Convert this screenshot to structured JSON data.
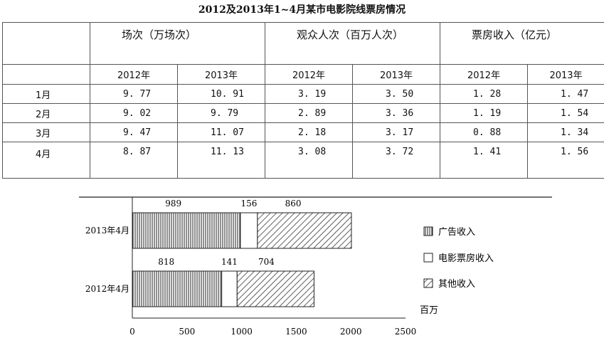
{
  "table": {
    "title": "2012及2013年1~4月某市电影院线票房情况",
    "groups": [
      "场次（万场次）",
      "观众人次（百万人次）",
      "票房收入（亿元）"
    ],
    "years": [
      "2012年",
      "2013年",
      "2012年",
      "2013年",
      "2012年",
      "2013年"
    ],
    "rows": [
      {
        "month": "1月",
        "values": [
          "9. 77",
          "10. 91",
          "3. 19",
          "3. 50",
          "1. 28",
          "1. 47"
        ]
      },
      {
        "month": "2月",
        "values": [
          "9. 02",
          "9. 79",
          "2. 89",
          "3. 36",
          "1. 19",
          "1. 54"
        ]
      },
      {
        "month": "3月",
        "values": [
          "9. 47",
          "11. 07",
          "2. 18",
          "3. 17",
          "0. 88",
          "1. 34"
        ]
      },
      {
        "month": "4月",
        "values": [
          "8. 87",
          "11. 13",
          "3. 08",
          "3. 72",
          "1. 41",
          "1. 56"
        ]
      }
    ]
  },
  "chart_data": {
    "type": "bar",
    "orientation": "horizontal",
    "stacked": true,
    "categories": [
      "2013年4月",
      "2012年4月"
    ],
    "series": [
      {
        "name": "广告收入",
        "values": [
          989,
          818
        ],
        "pattern": "vertical-lines"
      },
      {
        "name": "电影票房收入",
        "values": [
          156,
          141
        ],
        "pattern": "blank"
      },
      {
        "name": "其他收入",
        "values": [
          860,
          704
        ],
        "pattern": "diagonal-lines"
      }
    ],
    "unit": "百万",
    "xlim": [
      0,
      2500
    ],
    "xticks": [
      0,
      500,
      1000,
      1500,
      2000,
      2500
    ],
    "legend_position": "right",
    "grid": false,
    "colors": {
      "ink": "#222222",
      "fill": "#ffffff"
    }
  }
}
